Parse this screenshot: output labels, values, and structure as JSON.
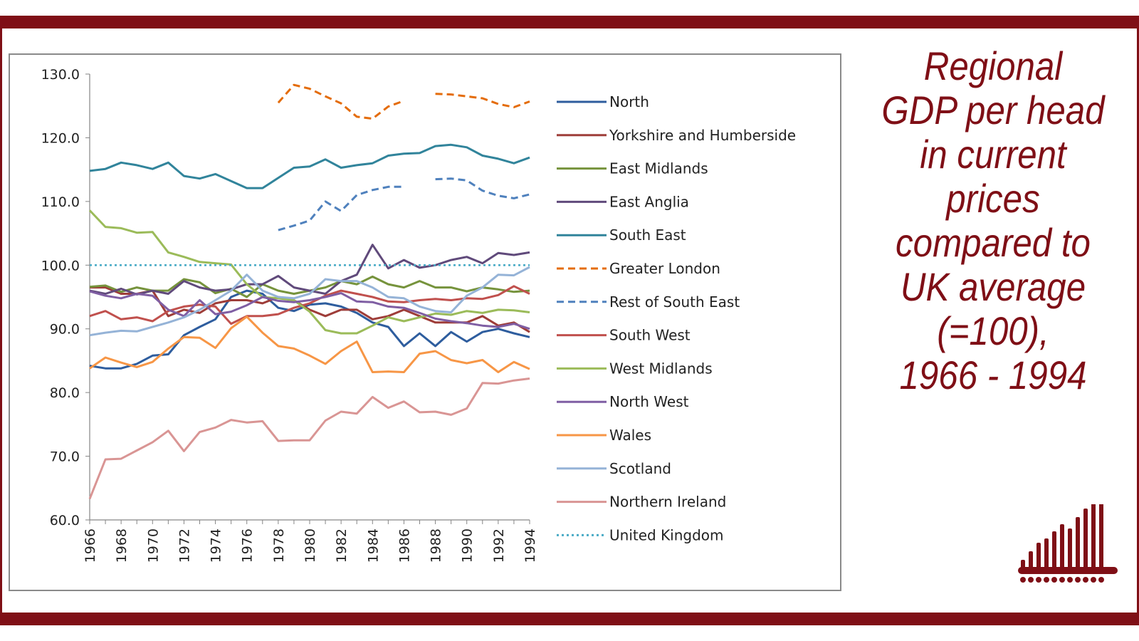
{
  "title_lines": [
    "Regional",
    "GDP per head",
    "in current",
    "prices",
    "compared to",
    "UK average",
    "(=100),",
    "1966 - 1994"
  ],
  "chart_data": {
    "type": "line",
    "x": [
      1966,
      1967,
      1968,
      1969,
      1970,
      1971,
      1972,
      1973,
      1974,
      1975,
      1976,
      1977,
      1978,
      1979,
      1980,
      1981,
      1982,
      1983,
      1984,
      1985,
      1986,
      1987,
      1988,
      1989,
      1990,
      1991,
      1992,
      1993,
      1994
    ],
    "x_tick_labels": [
      "1966",
      "1968",
      "1970",
      "1972",
      "1974",
      "1976",
      "1978",
      "1980",
      "1982",
      "1984",
      "1986",
      "1988",
      "1990",
      "1992",
      "1994"
    ],
    "y_tick_labels": [
      "130.0",
      "120.0",
      "110.0",
      "100.0",
      "90.0",
      "80.0",
      "70.0",
      "60.0"
    ],
    "ylim": [
      60,
      130
    ],
    "legend_position": "right",
    "series": [
      {
        "name": "North",
        "color": "#2e5d9e",
        "style": "solid",
        "values": [
          84.2,
          83.8,
          83.8,
          84.5,
          85.8,
          86.0,
          89.0,
          90.3,
          91.5,
          95.0,
          96.0,
          95.5,
          93.3,
          92.8,
          93.8,
          94.0,
          93.5,
          92.5,
          91.0,
          90.3,
          87.3,
          89.3,
          87.3,
          89.5,
          88.0,
          89.5,
          90.0,
          89.3,
          88.7
        ]
      },
      {
        "name": "Yorkshire and Humberside",
        "color": "#9e3d39",
        "style": "solid",
        "values": [
          96.5,
          96.5,
          95.5,
          95.5,
          96.0,
          92.0,
          93.0,
          92.5,
          94.0,
          94.5,
          94.5,
          94.0,
          95.0,
          94.5,
          93.0,
          92.0,
          93.0,
          93.0,
          91.5,
          92.0,
          93.0,
          92.0,
          91.0,
          91.0,
          91.0,
          92.0,
          90.5,
          91.0,
          89.5
        ]
      },
      {
        "name": "East Midlands",
        "color": "#76933c",
        "style": "solid",
        "values": [
          96.6,
          96.8,
          95.8,
          96.5,
          96.0,
          96.0,
          97.8,
          97.3,
          95.6,
          96.3,
          95.0,
          97.0,
          96.0,
          95.5,
          96.0,
          96.5,
          97.5,
          97.0,
          98.2,
          97.0,
          96.5,
          97.5,
          96.5,
          96.5,
          95.9,
          96.5,
          96.2,
          95.8,
          96.0
        ]
      },
      {
        "name": "East Anglia",
        "color": "#604a7b",
        "style": "solid",
        "values": [
          96.0,
          95.5,
          96.3,
          95.4,
          96.0,
          95.5,
          97.5,
          96.5,
          96.0,
          96.2,
          97.0,
          97.0,
          98.3,
          96.5,
          96.0,
          95.5,
          97.5,
          98.5,
          103.2,
          99.5,
          100.8,
          99.6,
          100.0,
          100.8,
          101.3,
          100.3,
          101.9,
          101.6,
          102.0
        ]
      },
      {
        "name": "South East",
        "color": "#31849b",
        "style": "solid",
        "values": [
          114.8,
          115.1,
          116.1,
          115.7,
          115.1,
          116.1,
          114.0,
          113.6,
          114.3,
          113.2,
          112.1,
          112.1,
          113.7,
          115.3,
          115.5,
          116.6,
          115.3,
          115.7,
          116.0,
          117.2,
          117.5,
          117.6,
          118.7,
          118.9,
          118.5,
          117.2,
          116.7,
          116.0,
          116.9
        ]
      },
      {
        "name": "Greater London",
        "color": "#e46c0a",
        "style": "dashed",
        "values": [
          null,
          null,
          null,
          null,
          null,
          null,
          null,
          null,
          null,
          null,
          null,
          null,
          125.5,
          128.3,
          127.7,
          126.5,
          125.4,
          123.3,
          123.0,
          124.9,
          125.8,
          null,
          126.9,
          126.8,
          126.5,
          126.2,
          125.3,
          124.8,
          125.7
        ]
      },
      {
        "name": "Rest of South East",
        "color": "#4f81bd",
        "style": "dashed",
        "values": [
          null,
          null,
          null,
          null,
          null,
          null,
          null,
          null,
          null,
          null,
          null,
          null,
          105.5,
          106.2,
          107.0,
          110.0,
          108.5,
          111.0,
          111.8,
          112.3,
          112.3,
          null,
          113.5,
          113.6,
          113.3,
          111.7,
          110.9,
          110.5,
          111.1
        ]
      },
      {
        "name": "South West",
        "color": "#c0504d",
        "style": "solid",
        "values": [
          92.0,
          92.8,
          91.5,
          91.8,
          91.2,
          92.8,
          93.5,
          93.8,
          93.5,
          90.8,
          92.0,
          92.0,
          92.3,
          93.3,
          94.0,
          95.2,
          96.0,
          95.5,
          95.0,
          94.3,
          94.2,
          94.5,
          94.7,
          94.5,
          94.8,
          94.7,
          95.3,
          96.7,
          95.5
        ]
      },
      {
        "name": "West Midlands",
        "color": "#9bbb59",
        "style": "solid",
        "values": [
          108.6,
          106.0,
          105.8,
          105.1,
          105.2,
          102.0,
          101.3,
          100.5,
          100.3,
          100.1,
          97.0,
          95.0,
          94.8,
          94.5,
          92.7,
          89.8,
          89.3,
          89.3,
          90.5,
          91.8,
          91.2,
          91.8,
          92.4,
          92.2,
          92.8,
          92.5,
          93.0,
          92.9,
          92.6
        ]
      },
      {
        "name": "North West",
        "color": "#7f5ea3",
        "style": "solid",
        "values": [
          95.9,
          95.2,
          94.8,
          95.5,
          95.2,
          93.0,
          92.0,
          94.5,
          92.3,
          92.7,
          93.7,
          95.0,
          94.4,
          94.2,
          94.5,
          95.0,
          95.6,
          94.3,
          94.2,
          93.5,
          93.3,
          92.5,
          91.6,
          91.2,
          90.9,
          90.5,
          90.3,
          90.8,
          90.0
        ]
      },
      {
        "name": "Wales",
        "color": "#f79646",
        "style": "solid",
        "values": [
          83.8,
          85.5,
          84.7,
          84.0,
          84.8,
          86.9,
          88.7,
          88.6,
          87.0,
          90.1,
          91.9,
          89.4,
          87.3,
          86.9,
          85.8,
          84.5,
          86.5,
          88.0,
          83.2,
          83.3,
          83.2,
          86.1,
          86.5,
          85.1,
          84.6,
          85.1,
          83.2,
          84.8,
          83.7
        ]
      },
      {
        "name": "Scotland",
        "color": "#95b3d7",
        "style": "solid",
        "values": [
          89.0,
          89.4,
          89.7,
          89.6,
          90.3,
          91.0,
          91.8,
          93.0,
          94.5,
          96.0,
          98.5,
          96.0,
          95.0,
          94.8,
          95.5,
          97.8,
          97.5,
          97.5,
          96.5,
          95.0,
          94.8,
          93.5,
          92.8,
          92.6,
          95.2,
          96.5,
          98.5,
          98.4,
          99.7
        ]
      },
      {
        "name": "Northern Ireland",
        "color": "#d99594",
        "style": "solid",
        "values": [
          63.3,
          69.5,
          69.6,
          70.9,
          72.2,
          74.0,
          70.8,
          73.8,
          74.5,
          75.7,
          75.3,
          75.5,
          72.4,
          72.5,
          72.5,
          75.6,
          77.0,
          76.7,
          79.3,
          77.6,
          78.6,
          76.9,
          77.0,
          76.5,
          77.5,
          81.5,
          81.4,
          81.9,
          82.2
        ]
      },
      {
        "name": "United Kingdom",
        "color": "#4bacc6",
        "style": "dotted",
        "values": [
          100,
          100,
          100,
          100,
          100,
          100,
          100,
          100,
          100,
          100,
          100,
          100,
          100,
          100,
          100,
          100,
          100,
          100,
          100,
          100,
          100,
          100,
          100,
          100,
          100,
          100,
          100,
          100,
          100
        ]
      }
    ]
  }
}
